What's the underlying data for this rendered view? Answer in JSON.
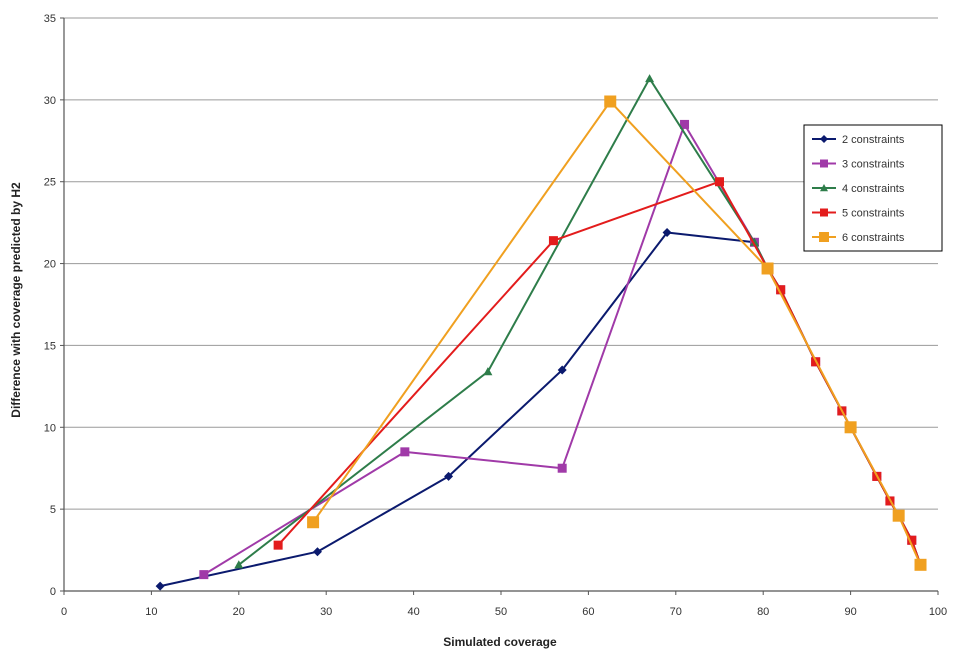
{
  "chart_data": {
    "type": "line",
    "title": "",
    "xlabel": "Simulated coverage",
    "ylabel": "Difference with coverage predicted by H2",
    "xlim": [
      0,
      100
    ],
    "ylim": [
      0,
      35
    ],
    "x_ticks": [
      "0",
      "10",
      "20",
      "30",
      "40",
      "50",
      "60",
      "70",
      "80",
      "90",
      "100"
    ],
    "y_ticks": [
      "0",
      "5",
      "10",
      "15",
      "20",
      "25",
      "30",
      "35"
    ],
    "grid": "horizontal",
    "legend_position": "right",
    "series": [
      {
        "name": "2 constraints",
        "color": "#0b1a6e",
        "marker": "diamond",
        "points": [
          [
            11,
            0.3
          ],
          [
            29,
            2.4
          ],
          [
            44,
            7.0
          ],
          [
            57,
            13.5
          ],
          [
            69,
            21.9
          ],
          [
            79,
            21.3
          ],
          [
            80.5,
            19.7
          ],
          [
            82,
            18.4
          ],
          [
            86,
            14.0
          ],
          [
            89,
            11.0
          ],
          [
            90,
            10.0
          ],
          [
            93,
            7.0
          ],
          [
            94.5,
            5.5
          ],
          [
            95.5,
            4.6
          ],
          [
            97,
            3.1
          ],
          [
            98,
            1.6
          ]
        ]
      },
      {
        "name": "3 constraints",
        "color": "#a03aa8",
        "marker": "square",
        "points": [
          [
            16,
            1.0
          ],
          [
            39,
            8.5
          ],
          [
            57,
            7.5
          ],
          [
            71,
            28.5
          ],
          [
            79,
            21.3
          ],
          [
            80.5,
            19.7
          ],
          [
            82,
            18.4
          ],
          [
            86,
            14.0
          ],
          [
            89,
            11.0
          ],
          [
            90,
            10.0
          ],
          [
            93,
            7.0
          ],
          [
            94.5,
            5.5
          ],
          [
            95.5,
            4.6
          ],
          [
            97,
            3.1
          ],
          [
            98,
            1.6
          ]
        ]
      },
      {
        "name": "4 constraints",
        "color": "#2e7d4a",
        "marker": "triangle",
        "points": [
          [
            20,
            1.6
          ],
          [
            48.5,
            13.4
          ],
          [
            67,
            31.3
          ],
          [
            79,
            21.3
          ],
          [
            80.5,
            19.7
          ],
          [
            82,
            18.4
          ],
          [
            86,
            14.0
          ],
          [
            89,
            11.0
          ],
          [
            90,
            10.0
          ],
          [
            93,
            7.0
          ],
          [
            94.5,
            5.5
          ],
          [
            95.5,
            4.6
          ],
          [
            97,
            3.1
          ],
          [
            98,
            1.6
          ]
        ]
      },
      {
        "name": "5 constraints",
        "color": "#e31c1c",
        "marker": "square",
        "points": [
          [
            24.5,
            2.8
          ],
          [
            56,
            21.4
          ],
          [
            75,
            25.0
          ],
          [
            80.5,
            19.7
          ],
          [
            82,
            18.4
          ],
          [
            86,
            14.0
          ],
          [
            89,
            11.0
          ],
          [
            90,
            10.0
          ],
          [
            93,
            7.0
          ],
          [
            94.5,
            5.5
          ],
          [
            95.5,
            4.6
          ],
          [
            97,
            3.1
          ],
          [
            98,
            1.6
          ]
        ]
      },
      {
        "name": "6 constraints",
        "color": "#f0a020",
        "marker": "square",
        "points": [
          [
            28.5,
            4.2
          ],
          [
            62.5,
            29.9
          ],
          [
            80.5,
            19.7
          ],
          [
            90,
            10.0
          ],
          [
            95.5,
            4.6
          ],
          [
            98,
            1.6
          ]
        ]
      }
    ]
  }
}
